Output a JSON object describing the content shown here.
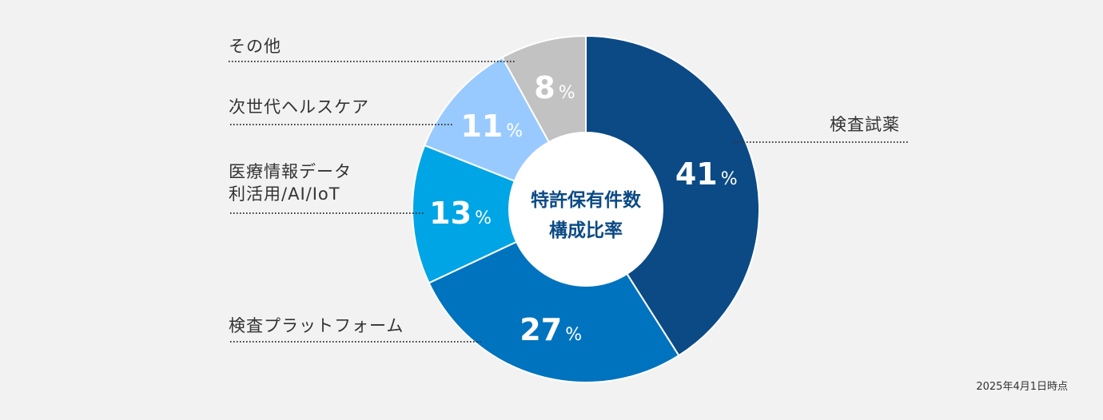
{
  "chart_data": {
    "type": "pie",
    "variant": "donut",
    "center_title": [
      "特許保有件数",
      "構成比率"
    ],
    "unit": "%",
    "slices": [
      {
        "label": "検査試薬",
        "value": 41,
        "color": "#0b4a85",
        "label_side": "right"
      },
      {
        "label": "検査プラットフォーム",
        "value": 27,
        "color": "#0073bf",
        "label_side": "left"
      },
      {
        "label": "医療情報データ\n利活用/AI/IoT",
        "value": 13,
        "color": "#00a5e6",
        "label_side": "left"
      },
      {
        "label": "次世代ヘルスケア",
        "value": 11,
        "color": "#99caff",
        "label_side": "left"
      },
      {
        "label": "その他",
        "value": 8,
        "color": "#c2c2c2",
        "label_side": "left"
      }
    ],
    "colors": {
      "center_title": "#0b4a85",
      "value_text": "#ffffff",
      "leader_line": "#333333",
      "background": "#f2f2f2"
    }
  },
  "footnote": "2025年4月1日時点"
}
